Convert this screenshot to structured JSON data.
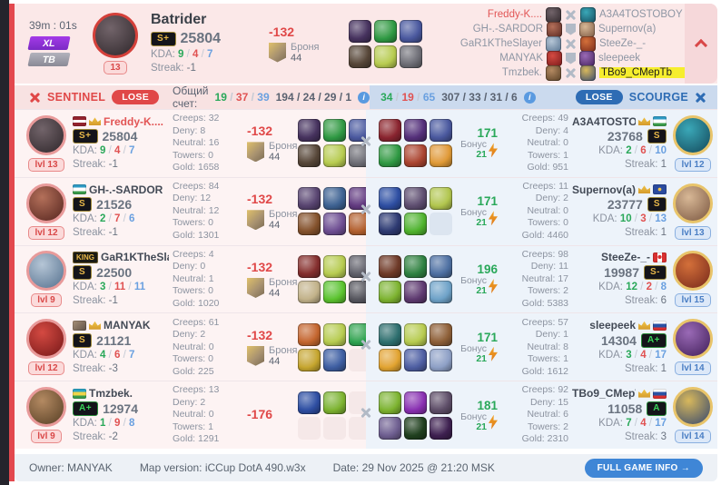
{
  "labels": {
    "kda": "KDA:",
    "streak": "Streak:",
    "creeps": "Creeps:",
    "deny": "Deny:",
    "neutral": "Neutral:",
    "towers": "Towers:",
    "gold": "Gold:",
    "bonus": "Бонус",
    "armor": "Броня",
    "lvl": "lvl",
    "king": "KING",
    "total_score": "Общий счет:",
    "info": "i"
  },
  "colors": {
    "sentinel_red": "#e04848",
    "scourge_blue": "#2e6cb4",
    "kills_green": "#2aa85a",
    "deaths_red": "#e05252",
    "assists_blue": "#6aa0e0",
    "highlight_yellow": "#f6ee2e",
    "accent_bar": "#e3484e"
  },
  "header": {
    "time": "39m : 01s",
    "mode_badge": "XL",
    "type_badge": "TB",
    "hero": {
      "name": "Batrider",
      "level": "13",
      "rank": "S+",
      "score": "25804",
      "k": "9",
      "d": "4",
      "a": "7",
      "streak": "-1",
      "avatar_colors": [
        "#72646a",
        "#2e262a"
      ]
    },
    "damage": {
      "value": "-132",
      "armor": "44"
    },
    "items": [
      "#46325e",
      "#2f9a44",
      "#4a589e",
      "#564638",
      "#b8cc50",
      "#6e6e76"
    ],
    "matchups": [
      {
        "left": "Freddy-K....",
        "left_color": "#e25555",
        "right": "A3A4TOSTOBOY",
        "vs": "swords",
        "left_icon": [
          "#72646a",
          "#2e262a"
        ],
        "right_icon": [
          "#3aa8b8",
          "#14485a"
        ]
      },
      {
        "left": "GH-.-SARDOR",
        "right": "Supernov(a)",
        "vs": "shield",
        "left_icon": [
          "#b4705a",
          "#54241e"
        ],
        "right_icon": [
          "#d8b896",
          "#7a5640"
        ]
      },
      {
        "left": "GaR1KTheSlayer",
        "right": "SteeZe-_-",
        "vs": "swords",
        "left_icon": [
          "#b6c6d6",
          "#54708e"
        ],
        "right_icon": [
          "#d4703a",
          "#76281a"
        ]
      },
      {
        "left": "MANYAK",
        "right": "sleepeek",
        "vs": "shield",
        "left_icon": [
          "#d44a42",
          "#761818"
        ],
        "right_icon": [
          "#9a6ab6",
          "#401e58"
        ]
      },
      {
        "left": "Tmzbek.",
        "right": "TBo9_CMepTb",
        "right_highlight": true,
        "vs": "swords",
        "left_icon": [
          "#b48a62",
          "#563e24"
        ],
        "right_icon": [
          "#d8b85c",
          "#34476e"
        ]
      }
    ]
  },
  "scorebar": {
    "sentinel": {
      "name": "SENTINEL",
      "result": "LOSE",
      "kda": [
        "19",
        "37",
        "39"
      ],
      "extra": [
        "194",
        "24",
        "29",
        "1"
      ]
    },
    "scourge": {
      "name": "SCOURGE",
      "result": "LOSE",
      "kda": [
        "34",
        "19",
        "65"
      ],
      "extra": [
        "307",
        "33",
        "31",
        "6"
      ]
    }
  },
  "rows": [
    {
      "left": {
        "name": "Freddy-K....",
        "name_color": "#e25555",
        "flag": "lv",
        "crown": true,
        "rank": "S+",
        "score": "25804",
        "k": "9",
        "d": "4",
        "a": "7",
        "streak": "-1",
        "level": "13",
        "creeps": "32",
        "deny": "8",
        "neutral": "16",
        "towers": "0",
        "gold": "1658",
        "damage": "-132",
        "armor": "44",
        "avatar_colors": [
          "#72646a",
          "#2e262a"
        ],
        "items": [
          "#46325e",
          "#2f9a44",
          "#4a589e",
          "#564638",
          "#b8cc50",
          "#6e6e76"
        ]
      },
      "right": {
        "name": "A3A4TOSTOBOY",
        "flag": "uz",
        "crown": true,
        "rank": "S",
        "score": "23768",
        "k": "2",
        "d": "6",
        "a": "10",
        "streak": "1",
        "level": "12",
        "creeps": "49",
        "deny": "4",
        "neutral": "0",
        "towers": "1",
        "gold": "951",
        "bonus": "171",
        "bonus2": "21",
        "avatar_colors": [
          "#3aa8b8",
          "#14485a"
        ],
        "items": [
          "#8a2430",
          "#55307a",
          "#4a589e",
          "#2f9a44",
          "#aa4430",
          "#e09a36"
        ]
      }
    },
    {
      "left": {
        "name": "GH-.-SARDOR",
        "flag": "uz",
        "crown": false,
        "rank": "S",
        "score": "21526",
        "k": "2",
        "d": "7",
        "a": "6",
        "streak": "-1",
        "level": "12",
        "creeps": "84",
        "deny": "12",
        "neutral": "12",
        "towers": "0",
        "gold": "1301",
        "damage": "-132",
        "armor": "44",
        "avatar_colors": [
          "#b4705a",
          "#54241e"
        ],
        "items": [
          "#584470",
          "#3e6292",
          "#623a80",
          "#84522c",
          "#6e4e92",
          "#b2602e"
        ]
      },
      "right": {
        "name": "Supernov(a)",
        "flag": "eu",
        "crown": true,
        "rank": "S",
        "score": "23777",
        "k": "10",
        "d": "3",
        "a": "13",
        "streak": "1",
        "level": "13",
        "creeps": "11",
        "deny": "2",
        "neutral": "0",
        "towers": "0",
        "gold": "4460",
        "bonus": "171",
        "bonus2": "21",
        "avatar_colors": [
          "#d8b896",
          "#7a5640"
        ],
        "items": [
          "#2e4ea2",
          "#5e4e70",
          "#b2c64e",
          "#2e3a72",
          "#50b42e",
          null
        ]
      }
    },
    {
      "left": {
        "name": "GaR1KTheSlayer",
        "flag": "king",
        "crown": false,
        "rank": "S",
        "score": "22500",
        "k": "3",
        "d": "11",
        "a": "11",
        "streak": "-1",
        "level": "9",
        "creeps": "4",
        "deny": "0",
        "neutral": "1",
        "towers": "0",
        "gold": "1020",
        "damage": "-132",
        "armor": "44",
        "avatar_colors": [
          "#b6c6d6",
          "#54708e"
        ],
        "items": [
          "#842e2e",
          "#b8cc50",
          "#60606a",
          "#c2b28a",
          "#5cc42e",
          "#56565e"
        ]
      },
      "right": {
        "name": "SteeZe-_-",
        "flag": "ca",
        "crown": false,
        "rank": "S-",
        "score": "19987",
        "k": "12",
        "d": "2",
        "a": "8",
        "streak": "6",
        "level": "15",
        "creeps": "98",
        "deny": "11",
        "neutral": "17",
        "towers": "2",
        "gold": "5383",
        "bonus": "196",
        "bonus2": "21",
        "avatar_colors": [
          "#d4703a",
          "#76281a"
        ],
        "items": [
          "#6e3a28",
          "#2e8242",
          "#4e70a2",
          "#7eb430",
          "#5e3a70",
          "#6ea2c8"
        ]
      }
    },
    {
      "left": {
        "name": "MANYAK",
        "flag": "img",
        "crown": true,
        "rank": "S",
        "score": "21121",
        "k": "4",
        "d": "6",
        "a": "7",
        "streak": "-3",
        "level": "12",
        "creeps": "61",
        "deny": "2",
        "neutral": "0",
        "towers": "0",
        "gold": "225",
        "damage": "-132",
        "armor": "44",
        "avatar_colors": [
          "#d44a42",
          "#761818"
        ],
        "items": [
          "#c4662e",
          "#b8cc50",
          "#2ea452",
          "#c6a62e",
          "#3e5ea2",
          null
        ]
      },
      "right": {
        "name": "sleepeek",
        "flag": "ru",
        "crown": true,
        "rank": "A+",
        "score": "14304",
        "k": "3",
        "d": "4",
        "a": "17",
        "streak": "1",
        "level": "14",
        "creeps": "57",
        "deny": "1",
        "neutral": "8",
        "towers": "1",
        "gold": "1612",
        "bonus": "171",
        "bonus2": "21",
        "avatar_colors": [
          "#9a6ab6",
          "#401e58"
        ],
        "items": [
          "#2e7070",
          "#b8cc50",
          "#8e6038",
          "#e2a430",
          "#4e5ea2",
          "#8ea0c6"
        ]
      }
    },
    {
      "left": {
        "name": "Tmzbek.",
        "flag": "kk",
        "crown": false,
        "rank": "A+",
        "score": "12974",
        "k": "1",
        "d": "9",
        "a": "8",
        "streak": "-2",
        "level": "9",
        "creeps": "13",
        "deny": "2",
        "neutral": "0",
        "towers": "1",
        "gold": "1291",
        "damage": "-176",
        "armor": null,
        "avatar_colors": [
          "#b48a62",
          "#563e24"
        ],
        "items": [
          "#2e4ea2",
          "#7eb430",
          null,
          null,
          null,
          null
        ]
      },
      "right": {
        "name": "TBo9_CMepTb",
        "flag": "ru",
        "crown": true,
        "rank": "A",
        "score": "11058",
        "k": "7",
        "d": "4",
        "a": "17",
        "streak": "3",
        "level": "14",
        "creeps": "92",
        "deny": "15",
        "neutral": "6",
        "towers": "2",
        "gold": "2310",
        "bonus": "181",
        "bonus2": "21",
        "avatar_colors": [
          "#d8b85c",
          "#34476e"
        ],
        "items": [
          "#7eb430",
          "#8a30b2",
          "#5e4e68",
          "#6e5e90",
          "#20401f",
          "#3e2050"
        ]
      }
    }
  ],
  "footer": {
    "owner": "Owner: MANYAK",
    "map": "Map version: iCCup DotA 490.w3x",
    "date": "Date: 29 Nov 2025 @ 21:20 MSK",
    "button": "FULL GAME INFO →"
  }
}
